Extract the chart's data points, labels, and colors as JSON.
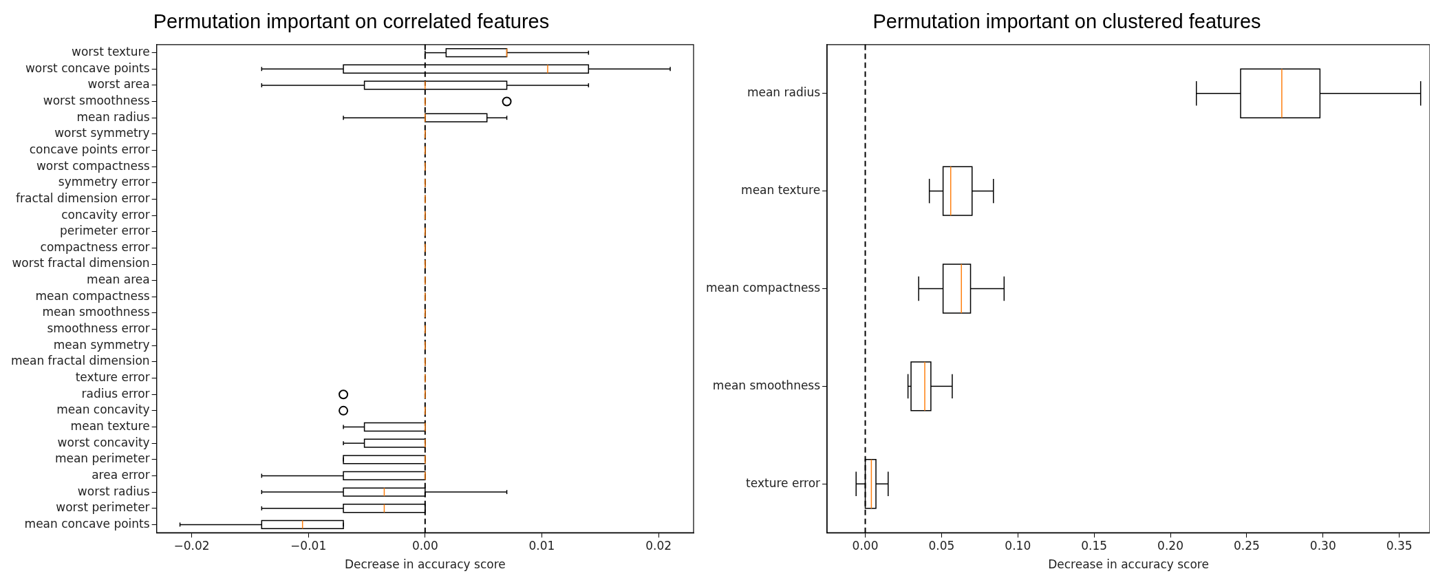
{
  "chart_data": [
    {
      "type": "box",
      "orientation": "horizontal",
      "title": "Permutation important on correlated features",
      "xlabel": "Decrease in accuracy score",
      "categories": [
        "worst texture",
        "worst concave points",
        "worst area",
        "worst smoothness",
        "mean radius",
        "worst symmetry",
        "concave points error",
        "worst compactness",
        "symmetry error",
        "fractal dimension error",
        "concavity error",
        "perimeter error",
        "compactness error",
        "worst fractal dimension",
        "mean area",
        "mean compactness",
        "mean smoothness",
        "smoothness error",
        "mean symmetry",
        "mean fractal dimension",
        "texture error",
        "radius error",
        "mean concavity",
        "mean texture",
        "worst concavity",
        "mean perimeter",
        "area error",
        "worst radius",
        "worst perimeter",
        "mean concave points"
      ],
      "boxes": [
        {
          "low": 0,
          "q1": 0.0018,
          "median": 0.007,
          "q3": 0.007,
          "high": 0.014
        },
        {
          "low": -0.014,
          "q1": -0.007,
          "median": 0.0105,
          "q3": 0.014,
          "high": 0.021
        },
        {
          "low": -0.014,
          "q1": -0.0052,
          "median": 0,
          "q3": 0.007,
          "high": 0.014
        },
        {
          "low": 0,
          "q1": 0,
          "median": 0,
          "q3": 0,
          "high": 0,
          "outliers": [
            0.007
          ]
        },
        {
          "low": -0.007,
          "q1": 0,
          "median": 0,
          "q3": 0.0053,
          "high": 0.007
        },
        {
          "low": 0,
          "q1": 0,
          "median": 0,
          "q3": 0,
          "high": 0
        },
        {
          "low": 0,
          "q1": 0,
          "median": 0,
          "q3": 0,
          "high": 0
        },
        {
          "low": 0,
          "q1": 0,
          "median": 0,
          "q3": 0,
          "high": 0
        },
        {
          "low": 0,
          "q1": 0,
          "median": 0,
          "q3": 0,
          "high": 0
        },
        {
          "low": 0,
          "q1": 0,
          "median": 0,
          "q3": 0,
          "high": 0
        },
        {
          "low": 0,
          "q1": 0,
          "median": 0,
          "q3": 0,
          "high": 0
        },
        {
          "low": 0,
          "q1": 0,
          "median": 0,
          "q3": 0,
          "high": 0
        },
        {
          "low": 0,
          "q1": 0,
          "median": 0,
          "q3": 0,
          "high": 0
        },
        {
          "low": 0,
          "q1": 0,
          "median": 0,
          "q3": 0,
          "high": 0
        },
        {
          "low": 0,
          "q1": 0,
          "median": 0,
          "q3": 0,
          "high": 0
        },
        {
          "low": 0,
          "q1": 0,
          "median": 0,
          "q3": 0,
          "high": 0
        },
        {
          "low": 0,
          "q1": 0,
          "median": 0,
          "q3": 0,
          "high": 0
        },
        {
          "low": 0,
          "q1": 0,
          "median": 0,
          "q3": 0,
          "high": 0
        },
        {
          "low": 0,
          "q1": 0,
          "median": 0,
          "q3": 0,
          "high": 0
        },
        {
          "low": 0,
          "q1": 0,
          "median": 0,
          "q3": 0,
          "high": 0
        },
        {
          "low": 0,
          "q1": 0,
          "median": 0,
          "q3": 0,
          "high": 0
        },
        {
          "low": 0,
          "q1": 0,
          "median": 0,
          "q3": 0,
          "high": 0,
          "outliers": [
            -0.007
          ]
        },
        {
          "low": 0,
          "q1": 0,
          "median": 0,
          "q3": 0,
          "high": 0,
          "outliers": [
            -0.007
          ]
        },
        {
          "low": -0.007,
          "q1": -0.0052,
          "median": 0,
          "q3": 0,
          "high": 0
        },
        {
          "low": -0.007,
          "q1": -0.0052,
          "median": 0,
          "q3": 0,
          "high": 0
        },
        {
          "low": -0.007,
          "q1": -0.007,
          "median": 0,
          "q3": 0,
          "high": 0
        },
        {
          "low": -0.014,
          "q1": -0.007,
          "median": 0,
          "q3": 0,
          "high": 0
        },
        {
          "low": -0.014,
          "q1": -0.007,
          "median": -0.0035,
          "q3": 0,
          "high": 0.007
        },
        {
          "low": -0.014,
          "q1": -0.007,
          "median": -0.0035,
          "q3": 0,
          "high": 0
        },
        {
          "low": -0.021,
          "q1": -0.014,
          "median": -0.0105,
          "q3": -0.007,
          "high": -0.007
        }
      ],
      "xlim": [
        -0.023,
        0.023
      ],
      "xticks": [
        {
          "value": -0.02,
          "label": "−0.02"
        },
        {
          "value": -0.01,
          "label": "−0.01"
        },
        {
          "value": 0,
          "label": "0.00"
        },
        {
          "value": 0.01,
          "label": "0.01"
        },
        {
          "value": 0.02,
          "label": "0.02"
        }
      ],
      "ref_lines": [
        {
          "axis": "x",
          "value": 0,
          "line_style": "dashed",
          "color": "#000000"
        }
      ]
    },
    {
      "type": "box",
      "orientation": "horizontal",
      "title": "Permutation important on clustered features",
      "xlabel": "Decrease in accuracy score",
      "categories": [
        "mean radius",
        "mean texture",
        "mean compactness",
        "mean smoothness",
        "texture error"
      ],
      "boxes": [
        {
          "low": 0.217,
          "q1": 0.246,
          "median": 0.273,
          "q3": 0.298,
          "high": 0.364
        },
        {
          "low": 0.042,
          "q1": 0.051,
          "median": 0.056,
          "q3": 0.07,
          "high": 0.084
        },
        {
          "low": 0.035,
          "q1": 0.051,
          "median": 0.063,
          "q3": 0.069,
          "high": 0.091
        },
        {
          "low": 0.028,
          "q1": 0.03,
          "median": 0.039,
          "q3": 0.043,
          "high": 0.057
        },
        {
          "low": -0.006,
          "q1": 0,
          "median": 0.004,
          "q3": 0.007,
          "high": 0.015
        }
      ],
      "xlim": [
        -0.025,
        0.37
      ],
      "xticks": [
        {
          "value": 0,
          "label": "0.00"
        },
        {
          "value": 0.05,
          "label": "0.05"
        },
        {
          "value": 0.1,
          "label": "0.10"
        },
        {
          "value": 0.15,
          "label": "0.15"
        },
        {
          "value": 0.2,
          "label": "0.20"
        },
        {
          "value": 0.25,
          "label": "0.25"
        },
        {
          "value": 0.3,
          "label": "0.30"
        },
        {
          "value": 0.35,
          "label": "0.35"
        }
      ],
      "ref_lines": [
        {
          "axis": "x",
          "value": 0,
          "line_style": "dashed",
          "color": "#000000"
        }
      ]
    }
  ]
}
